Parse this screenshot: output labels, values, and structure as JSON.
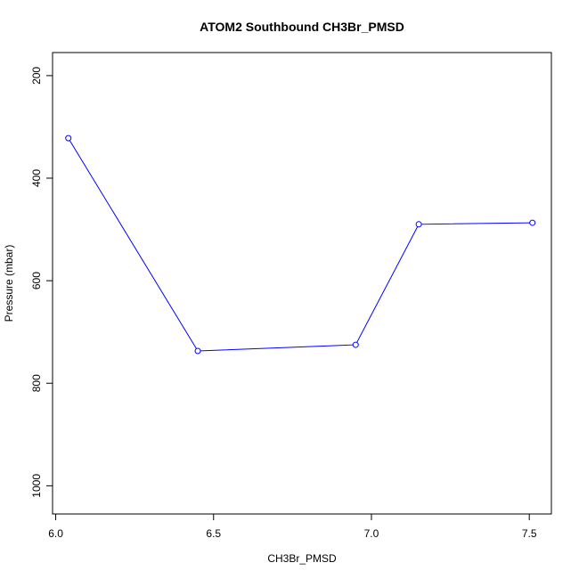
{
  "chart_data": {
    "type": "line",
    "title": "ATOM2 Southbound CH3Br_PMSD",
    "xlabel": "CH3Br_PMSD",
    "ylabel": "Pressure (mbar)",
    "xlim": [
      5.99,
      7.57
    ],
    "ylim": [
      1055,
      155
    ],
    "y_axis_inverted": true,
    "grid": false,
    "x_ticks": [
      "6.0",
      "6.5",
      "7.0",
      "7.5"
    ],
    "y_ticks": [
      "200",
      "400",
      "600",
      "800",
      "1000"
    ],
    "series": [
      {
        "color": "#0000ff",
        "marker": "open-circle",
        "x": [
          6.04,
          6.45,
          6.95,
          7.15,
          7.51
        ],
        "y": [
          322,
          737,
          725,
          490,
          487
        ]
      }
    ]
  }
}
